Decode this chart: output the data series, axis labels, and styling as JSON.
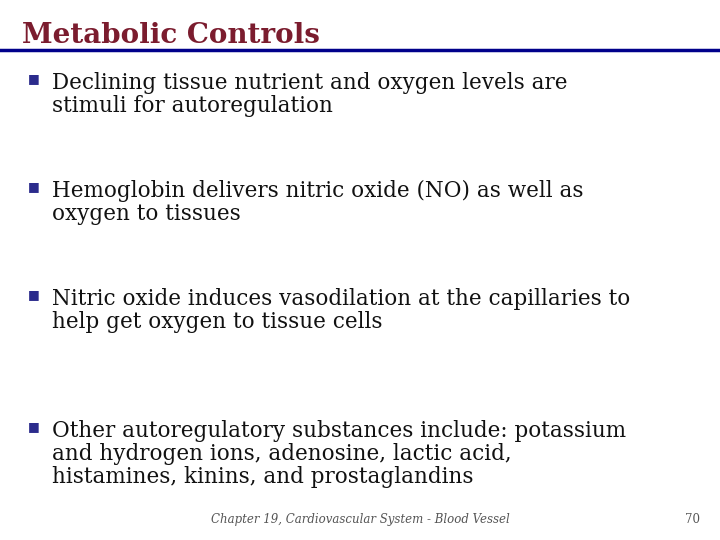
{
  "title": "Metabolic Controls",
  "title_color": "#7B1C2E",
  "title_fontsize": 20,
  "title_bold": true,
  "underline_color": "#00008B",
  "bullet_color": "#2B2B8C",
  "bullet_char": "■",
  "body_color": "#111111",
  "body_fontsize": 15.5,
  "background_color": "#FFFFFF",
  "footer_text": "Chapter 19, Cardiovascular System - Blood Vessel",
  "footer_page": "70",
  "footer_fontsize": 8.5,
  "bullets": [
    [
      "Declining tissue nutrient and oxygen levels are",
      "stimuli for autoregulation"
    ],
    [
      "Hemoglobin delivers nitric oxide (NO) as well as",
      "oxygen to tissues"
    ],
    [
      "Nitric oxide induces vasodilation at the capillaries to",
      "help get oxygen to tissue cells"
    ],
    [
      "Other autoregulatory substances include: potassium",
      "and hydrogen ions, adenosine, lactic acid,",
      "histamines, kinins, and prostaglandins"
    ]
  ]
}
